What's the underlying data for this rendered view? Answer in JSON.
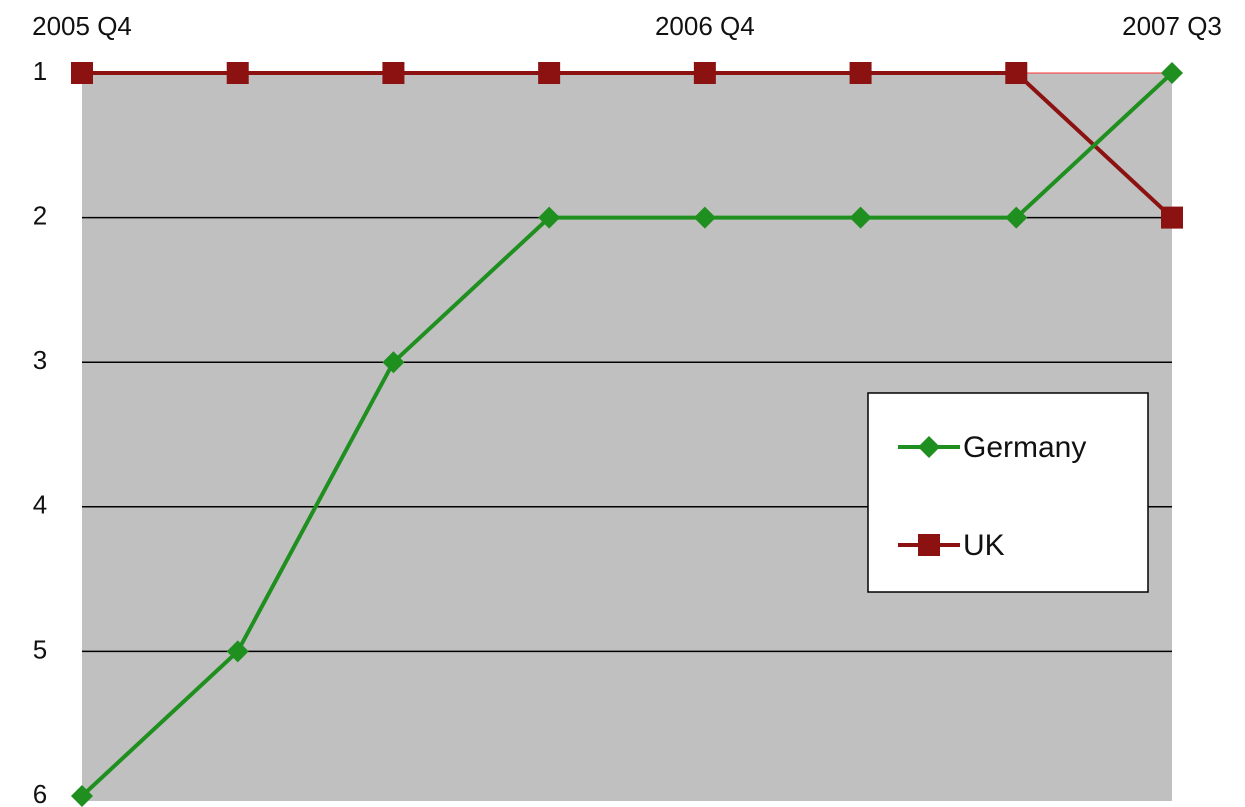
{
  "chart_data": {
    "type": "line",
    "categories": [
      "2005 Q4",
      null,
      null,
      null,
      "2006 Q4",
      null,
      null,
      "2007 Q3"
    ],
    "series": [
      {
        "name": "Germany",
        "color": "#1f8f1f",
        "marker": "diamond",
        "values": [
          6,
          5,
          3,
          2,
          2,
          2,
          2,
          1
        ]
      },
      {
        "name": "UK",
        "color": "#8c1212",
        "marker": "square",
        "values": [
          1,
          1,
          1,
          1,
          1,
          1,
          1,
          2
        ]
      }
    ],
    "ylim": [
      1,
      6
    ],
    "yticks": [
      1,
      2,
      3,
      4,
      5,
      6
    ],
    "y_inverted": true,
    "x_axis_position": "top",
    "grid": true,
    "legend": "right"
  }
}
